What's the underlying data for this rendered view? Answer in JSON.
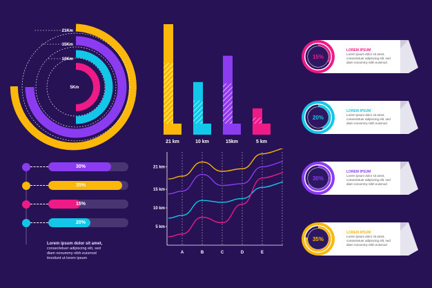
{
  "colors": {
    "background": "#271256",
    "yellow": "#fbb80a",
    "purple": "#8b3cf0",
    "cyan": "#12c7e8",
    "pink": "#ee1a86",
    "track": "#4a3573",
    "white": "#ffffff"
  },
  "radial": {
    "labels": [
      "21Km",
      "15Km",
      "10Km",
      "5Km"
    ]
  },
  "progress": {
    "rows": [
      {
        "label": "30%",
        "value": 0.3,
        "color": "#8b3cf0"
      },
      {
        "label": "35%",
        "value": 0.35,
        "color": "#fbb80a"
      },
      {
        "label": "15%",
        "value": 0.15,
        "color": "#ee1a86"
      },
      {
        "label": "20%",
        "value": 0.2,
        "color": "#12c7e8"
      }
    ],
    "note": {
      "title": "Lorem ipsum dolor sit amet,",
      "line1": "consectetuer adipiscing elit, sed",
      "line2": "diam nonummy nibh euismod",
      "line3": "tincidunt ut lorem ipsum"
    }
  },
  "chart_data": [
    {
      "type": "bar",
      "categories": [
        "21 km",
        "10 km",
        "15km",
        "5 km"
      ],
      "values": [
        21,
        10,
        15,
        5
      ],
      "colors": [
        "#fbb80a",
        "#12c7e8",
        "#8b3cf0",
        "#ee1a86"
      ]
    },
    {
      "type": "line",
      "x": [
        "A",
        "B",
        "C",
        "D",
        "E"
      ],
      "y_ticks": [
        "5 km",
        "10 km",
        "15 km",
        "21 km"
      ],
      "ylim": [
        0,
        25
      ],
      "series": [
        {
          "color": "#fbb80a",
          "values": [
            18.5,
            22.3,
            19.8,
            20.5,
            24.5
          ]
        },
        {
          "color": "#8b3cf0",
          "values": [
            14.5,
            19.0,
            16.0,
            16.5,
            21.0
          ]
        },
        {
          "color": "#12c7e8",
          "values": [
            8.0,
            12.0,
            11.5,
            12.5,
            15.5
          ]
        },
        {
          "color": "#ee1a86",
          "values": [
            3.0,
            7.5,
            6.0,
            11.0,
            18.0
          ]
        }
      ]
    }
  ],
  "cards": [
    {
      "pct": "15%",
      "value": 0.15,
      "color": "#ee1a86",
      "title": "LOREM IPSUM",
      "line1": "Lorem ipsum dolor sit amet,",
      "line2": "consectetuer adipiscing elit, sed",
      "line3": "diam nonummy nibh euismod"
    },
    {
      "pct": "20%",
      "value": 0.2,
      "color": "#12c7e8",
      "title": "LOREM IPSUM",
      "line1": "Lorem ipsum dolor sit amet,",
      "line2": "consectetuer adipiscing elit, sed",
      "line3": "diam nonummy nibh euismod"
    },
    {
      "pct": "30%",
      "value": 0.3,
      "color": "#8b3cf0",
      "title": "LOREM IPSUM",
      "line1": "Lorem ipsum dolor sit amet,",
      "line2": "consectetuer adipiscing elit, sed",
      "line3": "diam nonummy nibh euismod"
    },
    {
      "pct": "35%",
      "value": 0.35,
      "color": "#fbb80a",
      "title": "LOREM IPSUM",
      "line1": "Lorem ipsum dolor sit amet,",
      "line2": "consectetuer adipiscing elit, sed",
      "line3": "diam nonummy nibh euismod"
    }
  ]
}
